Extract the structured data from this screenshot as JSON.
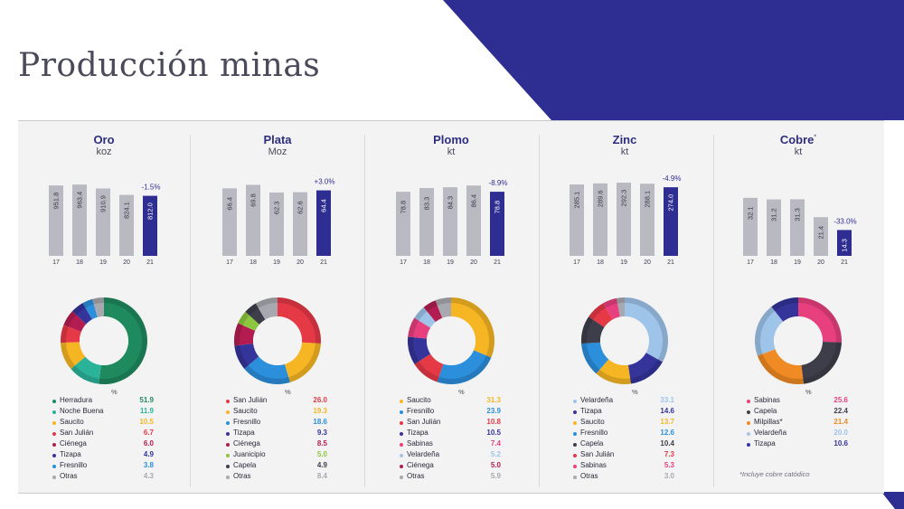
{
  "title": "Producción minas",
  "colors": {
    "bar_hist": "#b9b9c2",
    "bar_current": "#2e2e92",
    "accent": "#2e2e92"
  },
  "chart_data": [
    {
      "type": "bar",
      "title": "Oro",
      "unit": "koz",
      "categories": [
        "17",
        "18",
        "19",
        "20",
        "21"
      ],
      "values": [
        951.8,
        963.4,
        910.9,
        824.1,
        812.0
      ],
      "value_labels": [
        "951.8",
        "963.4",
        "910.9",
        "824.1",
        "812.0"
      ],
      "change": "-1.5%",
      "ylim": [
        0,
        1100
      ]
    },
    {
      "type": "bar",
      "title": "Plata",
      "unit": "Moz",
      "categories": [
        "17",
        "18",
        "19",
        "20",
        "21"
      ],
      "values": [
        66.4,
        69.8,
        62.3,
        62.6,
        64.4
      ],
      "value_labels": [
        "66.4",
        "69.8",
        "62.3",
        "62.6",
        "64.4"
      ],
      "change": "+3.0%",
      "ylim": [
        0,
        80
      ]
    },
    {
      "type": "bar",
      "title": "Plomo",
      "unit": "kt",
      "categories": [
        "17",
        "18",
        "19",
        "20",
        "21"
      ],
      "values": [
        78.8,
        83.3,
        84.3,
        86.4,
        78.8
      ],
      "value_labels": [
        "78.8",
        "83.3",
        "84.3",
        "86.4",
        "78.8"
      ],
      "change": "-8.9%",
      "ylim": [
        0,
        100
      ]
    },
    {
      "type": "bar",
      "title": "Zinc",
      "unit": "kt",
      "categories": [
        "17",
        "18",
        "19",
        "20",
        "21"
      ],
      "values": [
        285.1,
        289.6,
        292.3,
        288.1,
        274.0
      ],
      "value_labels": [
        "285.1",
        "289.6",
        "292.3",
        "288.1",
        "274.0"
      ],
      "change": "-4.9%",
      "ylim": [
        0,
        325
      ]
    },
    {
      "type": "bar",
      "title": "Cobre",
      "title_sup": "*",
      "unit": "kt",
      "categories": [
        "17",
        "18",
        "19",
        "20",
        "21"
      ],
      "values": [
        32.1,
        31.2,
        31.3,
        21.4,
        14.3
      ],
      "value_labels": [
        "32.1",
        "31.2",
        "31.3",
        "21.4",
        "14.3"
      ],
      "change": "-33.0%",
      "ylim": [
        0,
        45
      ]
    },
    {
      "type": "pie",
      "title": "Oro",
      "pct_label": "%",
      "slices": [
        {
          "label": "Herradura",
          "value": 51.9,
          "value_label": "51.9",
          "color": "#1f8a5e"
        },
        {
          "label": "Noche Buena",
          "value": 11.9,
          "value_label": "11.9",
          "color": "#2bb39a"
        },
        {
          "label": "Saucito",
          "value": 10.5,
          "value_label": "10.5",
          "color": "#f6b623"
        },
        {
          "label": "San Julián",
          "value": 6.7,
          "value_label": "6.7",
          "color": "#e63946"
        },
        {
          "label": "Ciénega",
          "value": 6.0,
          "value_label": "6.0",
          "color": "#b31c50"
        },
        {
          "label": "Tizapa",
          "value": 4.9,
          "value_label": "4.9",
          "color": "#34349a"
        },
        {
          "label": "Fresnillo",
          "value": 3.8,
          "value_label": "3.8",
          "color": "#2b8fdb"
        },
        {
          "label": "Otras",
          "value": 4.3,
          "value_label": "4.3",
          "color": "#a8a8b0"
        }
      ]
    },
    {
      "type": "pie",
      "title": "Plata",
      "pct_label": "%",
      "slices": [
        {
          "label": "San Julián",
          "value": 26.0,
          "value_label": "26.0",
          "color": "#e63946"
        },
        {
          "label": "Saucito",
          "value": 19.3,
          "value_label": "19.3",
          "color": "#f6b623"
        },
        {
          "label": "Fresnillo",
          "value": 18.6,
          "value_label": "18.6",
          "color": "#2b8fdb"
        },
        {
          "label": "Tizapa",
          "value": 9.3,
          "value_label": "9.3",
          "color": "#34349a"
        },
        {
          "label": "Ciénega",
          "value": 8.5,
          "value_label": "8.5",
          "color": "#b31c50"
        },
        {
          "label": "Juanicipio",
          "value": 5.0,
          "value_label": "5.0",
          "color": "#8cc63f"
        },
        {
          "label": "Capela",
          "value": 4.9,
          "value_label": "4.9",
          "color": "#3e3e4a"
        },
        {
          "label": "Otras",
          "value": 8.4,
          "value_label": "8.4",
          "color": "#a8a8b0"
        }
      ]
    },
    {
      "type": "pie",
      "title": "Plomo",
      "pct_label": "%",
      "slices": [
        {
          "label": "Saucito",
          "value": 31.3,
          "value_label": "31.3",
          "color": "#f6b623"
        },
        {
          "label": "Fresnillo",
          "value": 23.9,
          "value_label": "23.9",
          "color": "#2b8fdb"
        },
        {
          "label": "San Julián",
          "value": 10.8,
          "value_label": "10.8",
          "color": "#e63946"
        },
        {
          "label": "Tizapa",
          "value": 10.5,
          "value_label": "10.5",
          "color": "#34349a"
        },
        {
          "label": "Sabinas",
          "value": 7.4,
          "value_label": "7.4",
          "color": "#e8407e"
        },
        {
          "label": "Velardeña",
          "value": 5.2,
          "value_label": "5.2",
          "color": "#9ec4ea"
        },
        {
          "label": "Ciénega",
          "value": 5.0,
          "value_label": "5.0",
          "color": "#b31c50"
        },
        {
          "label": "Otras",
          "value": 5.9,
          "value_label": "5.9",
          "color": "#a8a8b0"
        }
      ]
    },
    {
      "type": "pie",
      "title": "Zinc",
      "pct_label": "%",
      "slices": [
        {
          "label": "Velardeña",
          "value": 33.1,
          "value_label": "33.1",
          "color": "#9ec4ea"
        },
        {
          "label": "Tizapa",
          "value": 14.6,
          "value_label": "14.6",
          "color": "#34349a"
        },
        {
          "label": "Saucito",
          "value": 13.7,
          "value_label": "13.7",
          "color": "#f6b623"
        },
        {
          "label": "Fresnillo",
          "value": 12.6,
          "value_label": "12.6",
          "color": "#2b8fdb"
        },
        {
          "label": "Capela",
          "value": 10.4,
          "value_label": "10.4",
          "color": "#3e3e4a"
        },
        {
          "label": "San Julián",
          "value": 7.3,
          "value_label": "7.3",
          "color": "#e63946"
        },
        {
          "label": "Sabinas",
          "value": 5.3,
          "value_label": "5.3",
          "color": "#e8407e"
        },
        {
          "label": "Otras",
          "value": 3.0,
          "value_label": "3.0",
          "color": "#a8a8b0"
        }
      ]
    },
    {
      "type": "pie",
      "title": "Cobre",
      "pct_label": "%",
      "note": "*Incluye cobre catódico",
      "slices": [
        {
          "label": "Sabinas",
          "value": 25.6,
          "value_label": "25.6",
          "color": "#e8407e"
        },
        {
          "label": "Capela",
          "value": 22.4,
          "value_label": "22.4",
          "color": "#3e3e4a"
        },
        {
          "label": "Milpillas*",
          "value": 21.4,
          "value_label": "21.4",
          "color": "#f08a24"
        },
        {
          "label": "Velardeña",
          "value": 20.0,
          "value_label": "20.0",
          "color": "#9ec4ea"
        },
        {
          "label": "Tizapa",
          "value": 10.6,
          "value_label": "10.6",
          "color": "#34349a"
        }
      ]
    }
  ]
}
